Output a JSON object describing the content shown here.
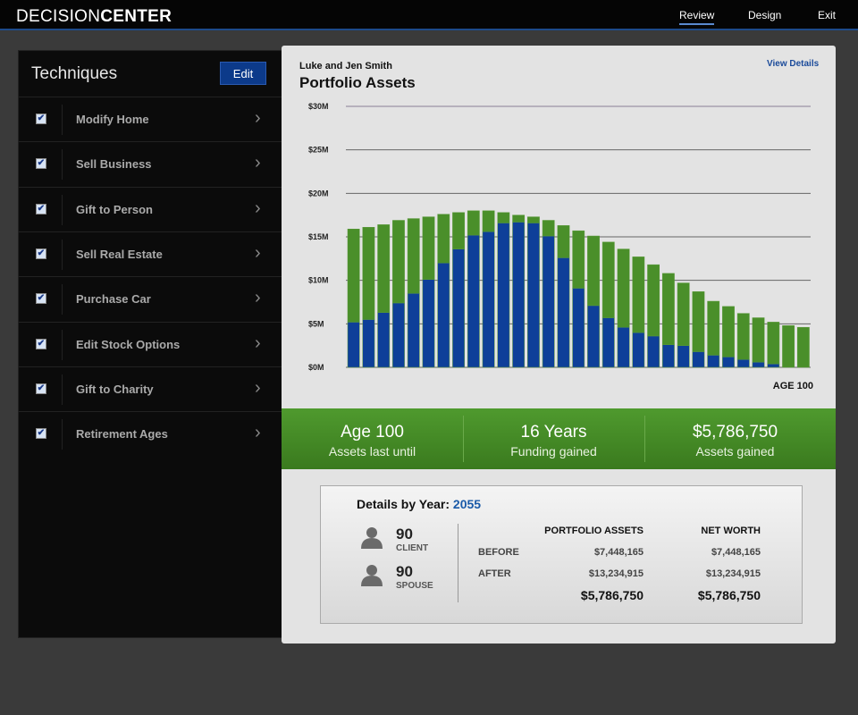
{
  "header": {
    "brand_light": "DECISION",
    "brand_bold": "CENTER",
    "nav": [
      "Review",
      "Design",
      "Exit"
    ]
  },
  "sidebar": {
    "title": "Techniques",
    "edit": "Edit",
    "items": [
      "Modify Home",
      "Sell Business",
      "Gift to Person",
      "Sell Real Estate",
      "Purchase Car",
      "Edit Stock Options",
      "Gift to Charity",
      "Retirement Ages"
    ]
  },
  "panel": {
    "client": "Luke and Jen Smith",
    "view_details": "View Details"
  },
  "chart_data": {
    "type": "stacked-bar",
    "title": "Portfolio Assets",
    "annotation": "AGE 100",
    "categories": [
      null,
      null,
      null,
      null,
      null,
      null,
      null,
      null,
      null,
      null,
      null,
      null,
      null,
      null,
      null,
      null,
      null,
      null,
      null,
      null,
      null,
      null,
      null,
      null,
      null,
      null,
      null,
      null,
      null,
      null,
      null
    ],
    "series": [
      {
        "color": "#0e3f99",
        "values": [
          5.2,
          5.5,
          6.3,
          7.4,
          8.5,
          10.1,
          12.0,
          13.6,
          15.2,
          15.6,
          16.6,
          16.7,
          16.6,
          15.1,
          12.6,
          9.1,
          7.1,
          5.7,
          4.6,
          4.0,
          3.6,
          2.6,
          2.5,
          1.8,
          1.4,
          1.2,
          0.9,
          0.6,
          0.4,
          0,
          0
        ]
      },
      {
        "color": "#4a8f2a",
        "values": [
          10.7,
          10.6,
          10.1,
          9.5,
          8.6,
          7.2,
          5.6,
          4.2,
          2.8,
          2.4,
          1.2,
          0.8,
          0.7,
          1.8,
          3.7,
          6.6,
          8.0,
          8.7,
          9.0,
          8.7,
          8.2,
          8.2,
          7.2,
          6.9,
          6.2,
          5.8,
          5.3,
          5.1,
          4.8,
          4.8,
          4.6
        ]
      }
    ],
    "ylim": [
      0,
      30
    ],
    "yticks": [
      {
        "value": 0,
        "label": "$0M"
      },
      {
        "value": 5,
        "label": "$5M"
      },
      {
        "value": 10,
        "label": "$10M"
      },
      {
        "value": 15,
        "label": "$15M"
      },
      {
        "value": 20,
        "label": "$20M"
      },
      {
        "value": 25,
        "label": "$25M"
      },
      {
        "value": 30,
        "label": "$30M"
      }
    ],
    "grid": true
  },
  "stats": [
    {
      "value": "Age 100",
      "label": "Assets last until"
    },
    {
      "value": "16 Years",
      "label": "Funding gained"
    },
    {
      "value": "$5,786,750",
      "label": "Assets gained"
    }
  ],
  "details": {
    "title": "Details by Year:",
    "year": "2055",
    "people": [
      {
        "age": "90",
        "role": "CLIENT"
      },
      {
        "age": "90",
        "role": "SPOUSE"
      }
    ],
    "columns": [
      "PORTFOLIO ASSETS",
      "NET WORTH"
    ],
    "rows": [
      {
        "label": "BEFORE",
        "values": [
          "$7,448,165",
          "$7,448,165"
        ]
      },
      {
        "label": "AFTER",
        "values": [
          "$13,234,915",
          "$13,234,915"
        ]
      }
    ],
    "totals": [
      "$5,786,750",
      "$5,786,750"
    ]
  }
}
